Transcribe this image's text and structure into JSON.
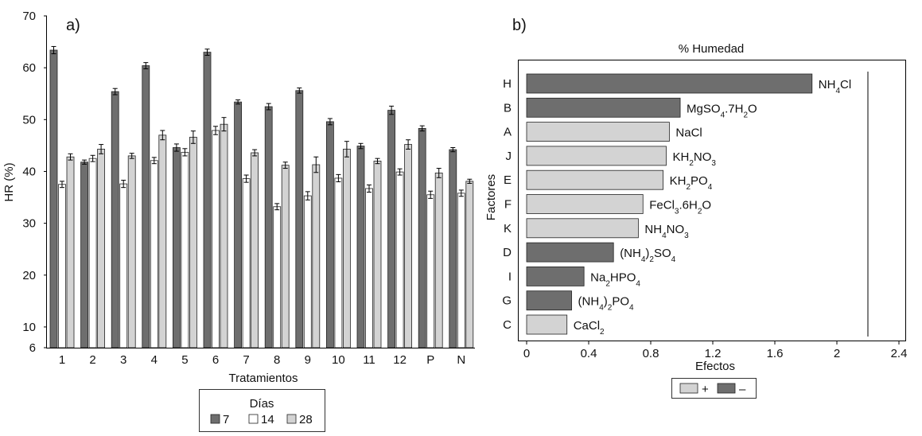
{
  "chart_data": [
    {
      "type": "bar",
      "panel_label": "a)",
      "title": "",
      "xlabel": "Tratamientos",
      "ylabel": "HR (%)",
      "ylim": [
        6,
        70
      ],
      "yticks": [
        6,
        10,
        20,
        30,
        40,
        50,
        60,
        70
      ],
      "grid": false,
      "error_bars": true,
      "categories": [
        "1",
        "2",
        "3",
        "4",
        "5",
        "6",
        "7",
        "8",
        "9",
        "10",
        "11",
        "12",
        "P",
        "N"
      ],
      "series": [
        {
          "name": "7",
          "color": "#6e6e6e",
          "values": [
            63.4,
            41.8,
            55.4,
            60.4,
            44.6,
            63.0,
            53.4,
            52.5,
            55.6,
            49.6,
            44.9,
            51.8,
            48.3,
            44.2
          ],
          "errors": [
            0.7,
            0.4,
            0.6,
            0.6,
            0.7,
            0.6,
            0.4,
            0.6,
            0.5,
            0.6,
            0.5,
            0.8,
            0.5,
            0.4
          ]
        },
        {
          "name": "14",
          "color": "#ffffff",
          "values": [
            37.5,
            42.5,
            37.6,
            42.1,
            43.7,
            47.9,
            38.6,
            33.2,
            35.3,
            38.7,
            36.7,
            39.9,
            35.5,
            35.8
          ],
          "errors": [
            0.6,
            0.6,
            0.7,
            0.6,
            0.7,
            0.8,
            0.7,
            0.6,
            0.8,
            0.7,
            0.7,
            0.6,
            0.7,
            0.6
          ]
        },
        {
          "name": "28",
          "color": "#d3d3d3",
          "values": [
            42.8,
            44.3,
            43.0,
            47.0,
            46.6,
            49.1,
            43.6,
            41.2,
            41.3,
            44.3,
            42.0,
            45.2,
            39.7,
            38.1
          ],
          "errors": [
            0.6,
            0.9,
            0.5,
            0.9,
            1.2,
            1.3,
            0.6,
            0.6,
            1.5,
            1.5,
            0.5,
            0.9,
            0.9,
            0.4
          ]
        }
      ],
      "legend": {
        "title": "Días",
        "position": "bottom-center",
        "entries": [
          "7",
          "14",
          "28"
        ]
      }
    },
    {
      "type": "bar",
      "orientation": "horizontal",
      "panel_label": "b)",
      "title": "% Humedad",
      "xlabel": "Efectos",
      "ylabel": "Factores",
      "xlim": [
        0,
        2.4
      ],
      "xticks": [
        "0",
        "0.4",
        "0.8",
        "1.2",
        "1.6",
        "2",
        "2.4"
      ],
      "reference_line": 2.2,
      "grid": false,
      "categories": [
        "H",
        "B",
        "A",
        "J",
        "E",
        "F",
        "K",
        "D",
        "I",
        "G",
        "C"
      ],
      "bar_labels": [
        [
          {
            "t": "NH"
          },
          {
            "t": "4",
            "s": "sub"
          },
          {
            "t": "Cl"
          }
        ],
        [
          {
            "t": "MgSO"
          },
          {
            "t": "4",
            "s": "sub"
          },
          {
            "t": ".7H"
          },
          {
            "t": "2",
            "s": "sub"
          },
          {
            "t": "O"
          }
        ],
        [
          {
            "t": "NaCl"
          }
        ],
        [
          {
            "t": "KH"
          },
          {
            "t": "2",
            "s": "sub"
          },
          {
            "t": "NO"
          },
          {
            "t": "3",
            "s": "sub"
          }
        ],
        [
          {
            "t": "KH"
          },
          {
            "t": "2",
            "s": "sub"
          },
          {
            "t": "PO"
          },
          {
            "t": "4",
            "s": "sub"
          }
        ],
        [
          {
            "t": "FeCl"
          },
          {
            "t": "3",
            "s": "sub"
          },
          {
            "t": ".6H"
          },
          {
            "t": "2",
            "s": "sub"
          },
          {
            "t": "O"
          }
        ],
        [
          {
            "t": "NH"
          },
          {
            "t": "4",
            "s": "sub"
          },
          {
            "t": "NO"
          },
          {
            "t": "3",
            "s": "sub"
          }
        ],
        [
          {
            "t": "(NH"
          },
          {
            "t": "4",
            "s": "sub"
          },
          {
            "t": ")"
          },
          {
            "t": "2",
            "s": "sub"
          },
          {
            "t": "SO"
          },
          {
            "t": "4",
            "s": "sub"
          }
        ],
        [
          {
            "t": "Na"
          },
          {
            "t": "2",
            "s": "sub"
          },
          {
            "t": "HPO"
          },
          {
            "t": "4",
            "s": "sub"
          }
        ],
        [
          {
            "t": "(NH"
          },
          {
            "t": "4",
            "s": "sub"
          },
          {
            "t": ")"
          },
          {
            "t": "2",
            "s": "sub"
          },
          {
            "t": "PO"
          },
          {
            "t": "4",
            "s": "sub"
          }
        ],
        [
          {
            "t": "CaCl"
          },
          {
            "t": "2",
            "s": "sub"
          }
        ]
      ],
      "values": [
        1.84,
        0.99,
        0.92,
        0.9,
        0.88,
        0.75,
        0.72,
        0.56,
        0.37,
        0.29,
        0.26
      ],
      "signs": [
        "-",
        "-",
        "+",
        "+",
        "+",
        "+",
        "+",
        "-",
        "-",
        "-",
        "+"
      ],
      "sign_colors": {
        "+": "#d3d3d3",
        "-": "#6e6e6e"
      },
      "legend": {
        "position": "bottom-center",
        "entries": [
          "+",
          "–"
        ]
      }
    }
  ]
}
